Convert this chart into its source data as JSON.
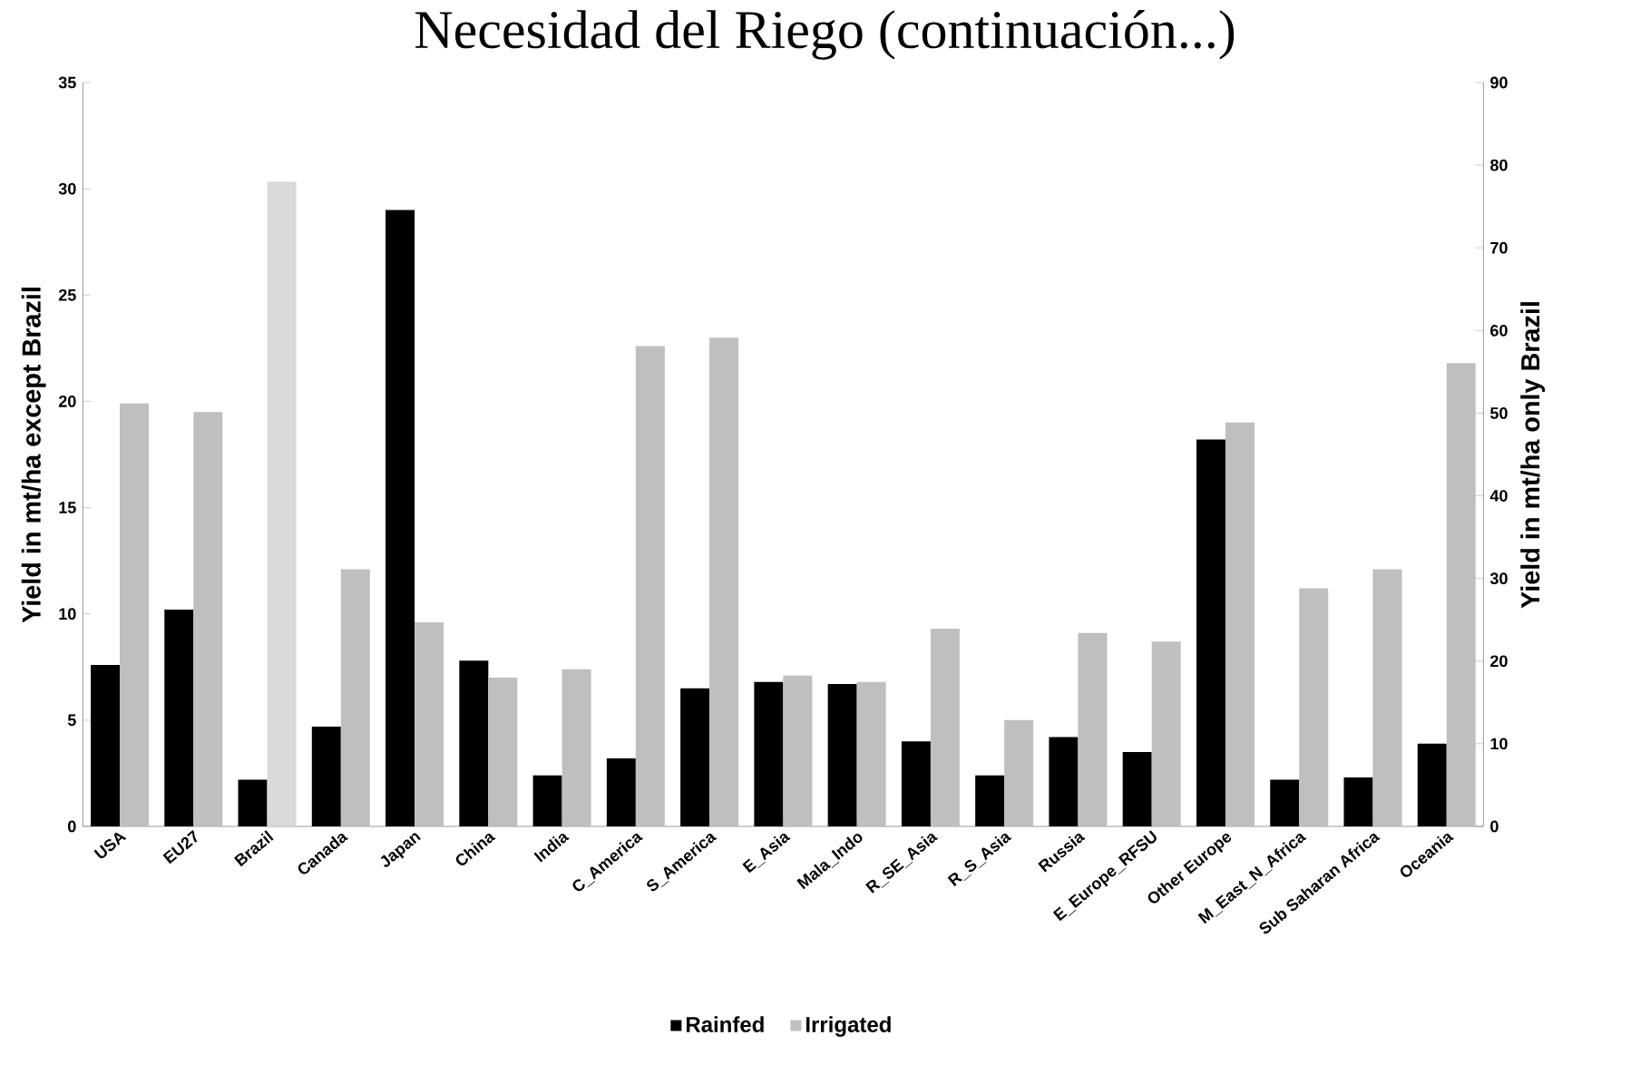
{
  "chart_data": {
    "type": "bar",
    "title": "Necesidad del Riego (continuación...)",
    "categories": [
      "USA",
      "EU27",
      "Brazil",
      "Canada",
      "Japan",
      "China",
      "India",
      "C_America",
      "S_America",
      "E_Asia",
      "Mala_Indo",
      "R_SE_Asia",
      "R_S_Asia",
      "Russia",
      "E_Europe_RFSU",
      "Other Europe",
      "M_East_N_Africa",
      "Sub Saharan Africa",
      "Oceania"
    ],
    "series": [
      {
        "name": "Rainfed",
        "color": "#000000",
        "values": [
          7.6,
          10.2,
          2.2,
          4.7,
          29.0,
          7.8,
          2.4,
          3.2,
          6.5,
          6.8,
          6.7,
          4.0,
          2.4,
          4.2,
          3.5,
          18.2,
          2.2,
          2.3,
          3.9
        ]
      },
      {
        "name": "Irrigated",
        "color": "#bfbfbf",
        "values": [
          19.9,
          19.5,
          null,
          12.1,
          9.6,
          7.0,
          7.4,
          22.6,
          23.0,
          7.1,
          6.8,
          9.3,
          5.0,
          9.1,
          8.7,
          19.0,
          11.2,
          12.1,
          21.8
        ]
      },
      {
        "color": "#d9d9d9",
        "axis": "y2",
        "values": [
          null,
          null,
          78,
          null,
          null,
          null,
          null,
          null,
          null,
          null,
          null,
          null,
          null,
          null,
          null,
          null,
          null,
          null,
          null
        ]
      }
    ],
    "ylabel": "Yield in mt/ha except Brazil",
    "y2label": "Yield in mt/ha only Brazil",
    "ylim": [
      0,
      35
    ],
    "yticks": [
      0,
      5,
      10,
      15,
      20,
      25,
      30,
      35
    ],
    "y2lim": [
      0,
      90
    ],
    "y2ticks": [
      0,
      10,
      20,
      30,
      40,
      50,
      60,
      70,
      80,
      90
    ],
    "legend": "bottom"
  }
}
